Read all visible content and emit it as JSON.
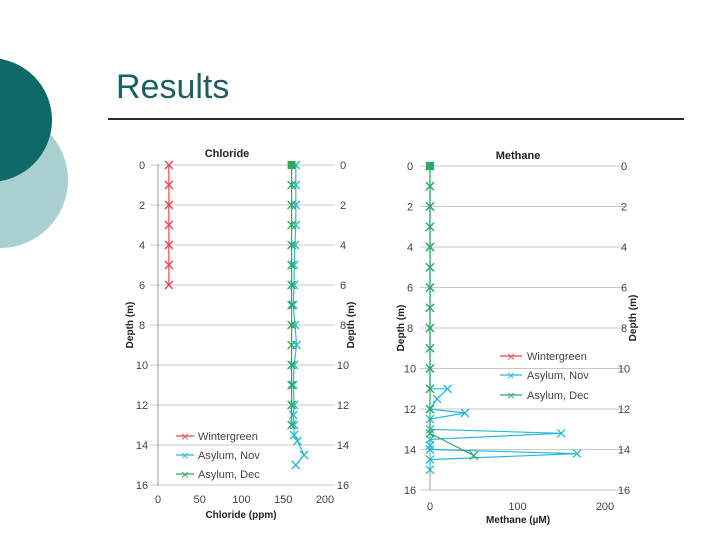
{
  "slide": {
    "title": "Results"
  },
  "colors": {
    "teal_dark": "#0e6a69",
    "teal_light": "#a9cfd1",
    "wintergreen": "#e8474f",
    "asylum_nov": "#28b8d8",
    "asylum_dec": "#2fa85c",
    "grid": "#c8c8c8"
  },
  "chart_data": [
    {
      "type": "line",
      "title": "Chloride",
      "xlabel": "Chloride (ppm)",
      "ylabel": "Depth (m)",
      "ylabel_right": "Depth (m)",
      "xlim": [
        0,
        200
      ],
      "ylim": [
        0,
        16
      ],
      "y_inverted": true,
      "x_ticks": [
        "0",
        "50",
        "100",
        "150",
        "200"
      ],
      "y_ticks": [
        "0",
        "2",
        "4",
        "6",
        "8",
        "10",
        "12",
        "14",
        "16"
      ],
      "y_ticks_right": [
        "0",
        "2",
        "4",
        "6",
        "8",
        "10",
        "12",
        "14",
        "16"
      ],
      "grid": true,
      "legend_position": "bottom-left",
      "series": [
        {
          "name": "Wintergreen",
          "x": [
            13,
            13,
            13,
            13,
            13,
            13,
            13
          ],
          "y": [
            0,
            1,
            2,
            3,
            4,
            5,
            6
          ]
        },
        {
          "name": "Asylum, Nov",
          "x": [
            165,
            165,
            165,
            165,
            164,
            163,
            163,
            162,
            164,
            166,
            163,
            162,
            163,
            162,
            163,
            163,
            167,
            175,
            165
          ],
          "y": [
            0,
            1,
            2,
            3,
            4,
            5,
            6,
            7,
            8,
            9,
            10,
            11,
            12,
            12.5,
            13,
            13.5,
            13.8,
            14.5,
            15
          ]
        },
        {
          "name": "Asylum, Dec",
          "x": [
            160,
            160,
            160,
            160,
            160,
            160,
            160,
            160,
            160,
            160,
            160,
            160,
            160,
            160
          ],
          "y": [
            0,
            1,
            2,
            3,
            4,
            5,
            6,
            7,
            8,
            9,
            10,
            11,
            12,
            13
          ]
        }
      ]
    },
    {
      "type": "line",
      "title": "Methane",
      "xlabel": "Methane (µM)",
      "ylabel": "Depth (m)",
      "ylabel_right": "Depth (m)",
      "xlim": [
        0,
        200
      ],
      "ylim": [
        0,
        16
      ],
      "y_inverted": true,
      "x_ticks": [
        "0",
        "100",
        "200"
      ],
      "y_ticks": [
        "0",
        "2",
        "4",
        "6",
        "8",
        "10",
        "12",
        "14",
        "16"
      ],
      "y_ticks_right": [
        "0",
        "2",
        "4",
        "6",
        "8",
        "10",
        "12",
        "14",
        "16"
      ],
      "grid": true,
      "legend_position": "right",
      "series": [
        {
          "name": "Wintergreen",
          "x": [
            0
          ],
          "y": [
            0
          ]
        },
        {
          "name": "Asylum, Nov",
          "x": [
            0,
            0,
            0,
            0,
            0,
            0,
            0,
            0,
            0,
            0,
            0,
            0,
            0,
            0,
            0,
            0,
            0,
            0,
            0,
            0,
            8,
            20,
            40,
            150,
            168
          ],
          "y": [
            0,
            1,
            2,
            3,
            4,
            5,
            6,
            7,
            8,
            9,
            10,
            11,
            12,
            12.5,
            13,
            13.5,
            13.8,
            14,
            14.5,
            15,
            11.5,
            11,
            12.2,
            13.2,
            14.2
          ]
        },
        {
          "name": "Asylum, Dec",
          "x": [
            0,
            0,
            0,
            0,
            0,
            0,
            0,
            0,
            0,
            0,
            0,
            0,
            0,
            0,
            50
          ],
          "y": [
            0,
            1,
            2,
            3,
            4,
            5,
            6,
            7,
            8,
            9,
            10,
            11,
            12,
            13.2,
            14.3
          ]
        }
      ]
    }
  ]
}
